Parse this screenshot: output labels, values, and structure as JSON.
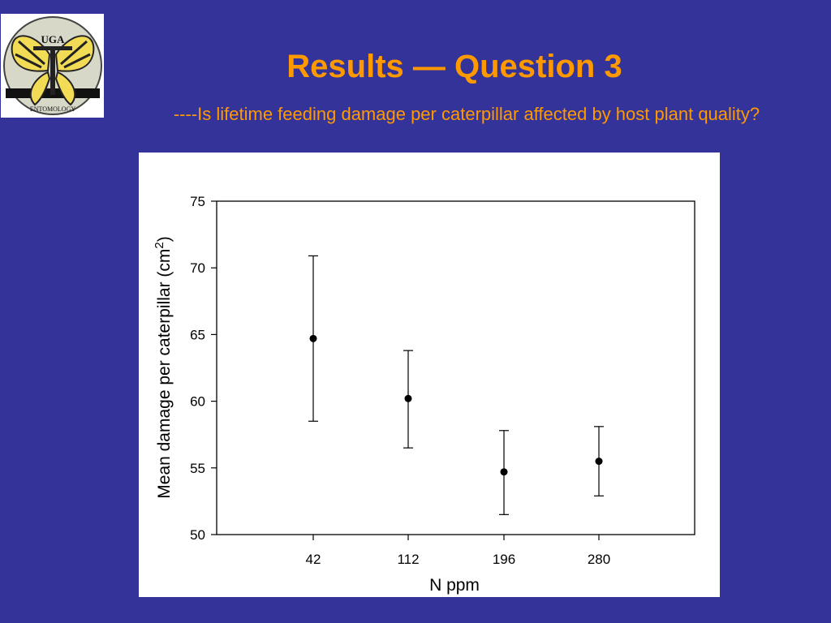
{
  "slide": {
    "title": "Results — Question 3",
    "subtitle": "----Is lifetime feeding damage per caterpillar affected by host plant quality?",
    "background_color": "#333399",
    "accent_color": "#ff9900"
  },
  "logo": {
    "icon": "uga-entomology-butterfly-logo",
    "text_top": "UGA",
    "text_bottom": "ENTOMOLOGY"
  },
  "chart_data": {
    "type": "scatter",
    "categories": [
      "42",
      "112",
      "196",
      "280"
    ],
    "values": [
      64.7,
      60.2,
      54.7,
      55.5
    ],
    "error_bars": {
      "upper": [
        70.9,
        63.8,
        57.8,
        58.1
      ],
      "lower": [
        58.5,
        56.5,
        51.5,
        52.9
      ]
    },
    "xlabel": "N ppm",
    "ylabel": "Mean damage per caterpillar (cm",
    "ylabel_superscript": "2",
    "ylabel_suffix": ")",
    "ylim": [
      50,
      75
    ],
    "yticks": [
      50,
      55,
      60,
      65,
      70,
      75
    ],
    "grid": false,
    "legend": "none"
  }
}
